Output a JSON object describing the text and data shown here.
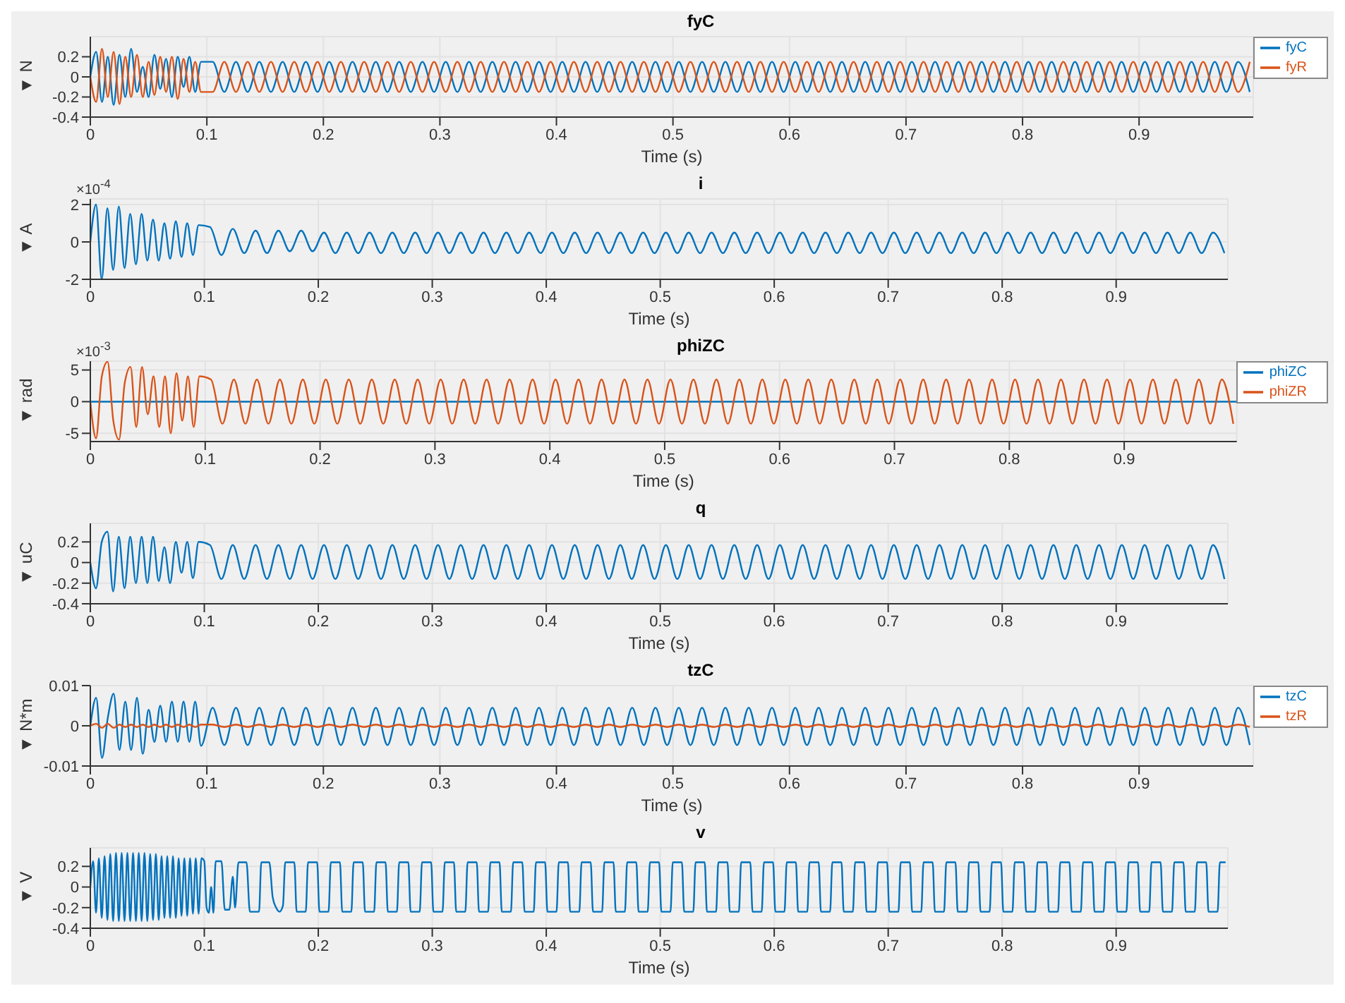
{
  "chart_data": [
    {
      "type": "line",
      "title": "fyC",
      "xlabel": "Time (s)",
      "ylabel": "▼ N",
      "xlim": [
        0,
        0.998
      ],
      "xticks": [
        0,
        0.1,
        0.2,
        0.3,
        0.4,
        0.5,
        0.6,
        0.7,
        0.8,
        0.9
      ],
      "ylim": [
        -0.4,
        0.4
      ],
      "yticks": [
        -0.4,
        -0.2,
        0,
        0.2
      ],
      "grid": true,
      "legend": "top right",
      "x": [
        0,
        0.005,
        0.01,
        0.015,
        0.02,
        0.025,
        0.03,
        0.035,
        0.04,
        0.045,
        0.05,
        0.055,
        0.06,
        0.065,
        0.07,
        0.075,
        0.08,
        0.085,
        0.09,
        0.095,
        0.105,
        0.115,
        0.125,
        0.135,
        0.145,
        0.155,
        0.165,
        0.175,
        0.185,
        0.195,
        0.205,
        0.215,
        0.225,
        0.235,
        0.245,
        0.255,
        0.265,
        0.275,
        0.285,
        0.295,
        0.305,
        0.315,
        0.325,
        0.335,
        0.345,
        0.355,
        0.365,
        0.375,
        0.385,
        0.395,
        0.405,
        0.415,
        0.425,
        0.435,
        0.445,
        0.455,
        0.465,
        0.475,
        0.485,
        0.495,
        0.505,
        0.515,
        0.525,
        0.535,
        0.545,
        0.555,
        0.565,
        0.575,
        0.585,
        0.595,
        0.605,
        0.615,
        0.625,
        0.635,
        0.645,
        0.655,
        0.665,
        0.675,
        0.685,
        0.695,
        0.705,
        0.715,
        0.725,
        0.735,
        0.745,
        0.755,
        0.765,
        0.775,
        0.785,
        0.795,
        0.805,
        0.815,
        0.825,
        0.835,
        0.845,
        0.855,
        0.865,
        0.875,
        0.885,
        0.895,
        0.905,
        0.915,
        0.925,
        0.935,
        0.945,
        0.955,
        0.965,
        0.975,
        0.985,
        0.995
      ],
      "series": [
        {
          "name": "fyC",
          "color": "#0072bd",
          "values": [
            0,
            0.25,
            -0.25,
            0.2,
            -0.28,
            0.22,
            -0.2,
            0.28,
            -0.15,
            0.1,
            -0.2,
            0.22,
            -0.12,
            0.18,
            -0.2,
            0.2,
            -0.1,
            0.2,
            -0.15,
            0.15,
            0.15,
            -0.15,
            0.15,
            -0.15,
            0.15,
            -0.15,
            0.15,
            -0.15,
            0.15,
            -0.15,
            0.15,
            -0.15,
            0.15,
            -0.15,
            0.15,
            -0.15,
            0.15,
            -0.15,
            0.15,
            -0.15,
            0.15,
            -0.15,
            0.15,
            -0.15,
            0.15,
            -0.15,
            0.15,
            -0.15,
            0.15,
            -0.15,
            0.15,
            -0.15,
            0.15,
            -0.15,
            0.15,
            -0.15,
            0.15,
            -0.15,
            0.15,
            -0.15,
            0.15,
            -0.15,
            0.15,
            -0.15,
            0.15,
            -0.15,
            0.15,
            -0.15,
            0.15,
            -0.15,
            0.15,
            -0.15,
            0.15,
            -0.15,
            0.15,
            -0.15,
            0.15,
            -0.15,
            0.15,
            -0.15,
            0.15,
            -0.15,
            0.15,
            -0.15,
            0.15,
            -0.15,
            0.15,
            -0.15,
            0.15,
            -0.15,
            0.15,
            -0.15,
            0.15,
            -0.15,
            0.15,
            -0.15,
            0.15,
            -0.15,
            0.15,
            -0.15,
            0.15,
            -0.15,
            0.15,
            -0.15,
            0.15,
            -0.15,
            0.15,
            -0.15,
            0.15,
            -0.15
          ]
        },
        {
          "name": "fyR",
          "color": "#d95319",
          "values": [
            0,
            -0.25,
            0.28,
            -0.2,
            0.25,
            -0.27,
            0.2,
            -0.2,
            0.22,
            -0.2,
            0.15,
            -0.18,
            0.2,
            -0.15,
            0.2,
            -0.22,
            0.18,
            -0.15,
            0.15,
            -0.15,
            -0.15,
            0.15,
            -0.15,
            0.15,
            -0.15,
            0.15,
            -0.15,
            0.15,
            -0.15,
            0.15,
            -0.15,
            0.15,
            -0.15,
            0.15,
            -0.15,
            0.15,
            -0.15,
            0.15,
            -0.15,
            0.15,
            -0.15,
            0.15,
            -0.15,
            0.15,
            -0.15,
            0.15,
            -0.15,
            0.15,
            -0.15,
            0.15,
            -0.15,
            0.15,
            -0.15,
            0.15,
            -0.15,
            0.15,
            -0.15,
            0.15,
            -0.15,
            0.15,
            -0.15,
            0.15,
            -0.15,
            0.15,
            -0.15,
            0.15,
            -0.15,
            0.15,
            -0.15,
            0.15,
            -0.15,
            0.15,
            -0.15,
            0.15,
            -0.15,
            0.15,
            -0.15,
            0.15,
            -0.15,
            0.15,
            -0.15,
            0.15,
            -0.15,
            0.15,
            -0.15,
            0.15,
            -0.15,
            0.15,
            -0.15,
            0.15,
            -0.15,
            0.15,
            -0.15,
            0.15,
            -0.15,
            0.15,
            -0.15,
            0.15,
            -0.15,
            0.15,
            -0.15,
            0.15,
            -0.15,
            0.15,
            -0.15,
            0.15,
            -0.15,
            0.15,
            -0.15,
            0.15
          ]
        }
      ]
    },
    {
      "type": "line",
      "title": "i",
      "xlabel": "Time (s)",
      "ylabel": "▼ A",
      "annotations": [
        "×10$^{-4}$"
      ],
      "xlim": [
        0,
        0.998
      ],
      "xticks": [
        0,
        0.1,
        0.2,
        0.3,
        0.4,
        0.5,
        0.6,
        0.7,
        0.8,
        0.9
      ],
      "ylim": [
        -2,
        2.3
      ],
      "yticks": [
        -2,
        0,
        2
      ],
      "grid": true,
      "x": [
        0,
        0.005,
        0.01,
        0.015,
        0.02,
        0.025,
        0.03,
        0.035,
        0.04,
        0.045,
        0.05,
        0.055,
        0.06,
        0.065,
        0.07,
        0.075,
        0.08,
        0.085,
        0.09,
        0.095,
        0.105,
        0.115,
        0.125,
        0.135,
        0.145,
        0.155,
        0.165,
        0.175,
        0.185,
        0.195,
        0.205,
        0.215,
        0.225,
        0.235,
        0.245,
        0.255,
        0.265,
        0.275,
        0.285,
        0.295,
        0.305,
        0.315,
        0.325,
        0.335,
        0.345,
        0.355,
        0.365,
        0.375,
        0.385,
        0.395,
        0.405,
        0.415,
        0.425,
        0.435,
        0.445,
        0.455,
        0.465,
        0.475,
        0.485,
        0.495,
        0.505,
        0.515,
        0.525,
        0.535,
        0.545,
        0.555,
        0.565,
        0.575,
        0.585,
        0.595,
        0.605,
        0.615,
        0.625,
        0.635,
        0.645,
        0.655,
        0.665,
        0.675,
        0.685,
        0.695,
        0.705,
        0.715,
        0.725,
        0.735,
        0.745,
        0.755,
        0.765,
        0.775,
        0.785,
        0.795,
        0.805,
        0.815,
        0.825,
        0.835,
        0.845,
        0.855,
        0.865,
        0.875,
        0.885,
        0.895,
        0.905,
        0.915,
        0.925,
        0.935,
        0.945,
        0.955,
        0.965,
        0.975,
        0.985,
        0.995
      ],
      "series": [
        {
          "color": "#0072bd",
          "values": [
            0,
            2,
            -2,
            1.8,
            -1.5,
            1.9,
            -1.4,
            1.5,
            -1.2,
            1.5,
            -1,
            1.2,
            -1,
            1,
            -0.9,
            1.1,
            -0.8,
            1,
            -0.7,
            0.9,
            0.8,
            -0.7,
            0.7,
            -0.6,
            0.6,
            -0.6,
            0.6,
            -0.5,
            0.6,
            -0.5,
            0.5,
            -0.6,
            0.5,
            -0.6,
            0.5,
            -0.6,
            0.5,
            -0.6,
            0.5,
            -0.6,
            0.5,
            -0.6,
            0.5,
            -0.6,
            0.5,
            -0.6,
            0.5,
            -0.6,
            0.5,
            -0.6,
            0.5,
            -0.6,
            0.5,
            -0.6,
            0.5,
            -0.6,
            0.5,
            -0.6,
            0.5,
            -0.6,
            0.5,
            -0.6,
            0.5,
            -0.6,
            0.5,
            -0.6,
            0.5,
            -0.6,
            0.5,
            -0.6,
            0.5,
            -0.6,
            0.5,
            -0.6,
            0.5,
            -0.6,
            0.5,
            -0.6,
            0.5,
            -0.6,
            0.5,
            -0.6,
            0.5,
            -0.6,
            0.5,
            -0.6,
            0.5,
            -0.6,
            0.5,
            -0.6,
            0.5,
            -0.6,
            0.5,
            -0.6,
            0.5,
            -0.6,
            0.5,
            -0.6,
            0.5,
            -0.6,
            0.5,
            -0.6,
            0.5,
            -0.6,
            0.5,
            -0.6,
            0.5,
            -0.6,
            0.5,
            -0.6
          ]
        }
      ]
    },
    {
      "type": "line",
      "title": "phiZC",
      "xlabel": "Time (s)",
      "ylabel": "▼ rad",
      "annotations": [
        "×10$^{-3}$"
      ],
      "xlim": [
        0,
        0.998
      ],
      "xticks": [
        0,
        0.1,
        0.2,
        0.3,
        0.4,
        0.5,
        0.6,
        0.7,
        0.8,
        0.9
      ],
      "ylim": [
        -6.3,
        6.4
      ],
      "yticks": [
        -5,
        0,
        5
      ],
      "grid": true,
      "legend": "top right",
      "x": [
        0,
        0.005,
        0.01,
        0.015,
        0.02,
        0.025,
        0.03,
        0.035,
        0.04,
        0.045,
        0.05,
        0.055,
        0.06,
        0.065,
        0.07,
        0.075,
        0.08,
        0.085,
        0.09,
        0.095,
        0.105,
        0.115,
        0.125,
        0.135,
        0.145,
        0.155,
        0.165,
        0.175,
        0.185,
        0.195,
        0.205,
        0.215,
        0.225,
        0.235,
        0.245,
        0.255,
        0.265,
        0.275,
        0.285,
        0.295,
        0.305,
        0.315,
        0.325,
        0.335,
        0.345,
        0.355,
        0.365,
        0.375,
        0.385,
        0.395,
        0.405,
        0.415,
        0.425,
        0.435,
        0.445,
        0.455,
        0.465,
        0.475,
        0.485,
        0.495,
        0.505,
        0.515,
        0.525,
        0.535,
        0.545,
        0.555,
        0.565,
        0.575,
        0.585,
        0.595,
        0.605,
        0.615,
        0.625,
        0.635,
        0.645,
        0.655,
        0.665,
        0.675,
        0.685,
        0.695,
        0.705,
        0.715,
        0.725,
        0.735,
        0.745,
        0.755,
        0.765,
        0.775,
        0.785,
        0.795,
        0.805,
        0.815,
        0.825,
        0.835,
        0.845,
        0.855,
        0.865,
        0.875,
        0.885,
        0.895,
        0.905,
        0.915,
        0.925,
        0.935,
        0.945,
        0.955,
        0.965,
        0.975,
        0.985,
        0.995
      ],
      "series": [
        {
          "name": "phiZC",
          "color": "#0072bd",
          "x": [
            0,
            0.998
          ],
          "values": [
            0,
            0
          ]
        },
        {
          "name": "phiZR",
          "color": "#d95319",
          "values": [
            0,
            -5.8,
            4,
            6.3,
            -3,
            -6,
            3,
            5.5,
            -4,
            5.5,
            -2,
            4,
            -4,
            4,
            -5,
            4.5,
            -3,
            4,
            -4,
            4,
            3.5,
            -3.5,
            3.5,
            -3.5,
            3.5,
            -3.5,
            3.5,
            -3.5,
            3.5,
            -3.5,
            3.5,
            -3.5,
            3.5,
            -3.5,
            3.5,
            -3.5,
            3.5,
            -3.5,
            3.5,
            -3.5,
            3.5,
            -3.5,
            3.5,
            -3.5,
            3.5,
            -3.5,
            3.5,
            -3.5,
            3.5,
            -3.5,
            3.5,
            -3.5,
            3.5,
            -3.5,
            3.5,
            -3.5,
            3.5,
            -3.5,
            3.5,
            -3.5,
            3.5,
            -3.5,
            3.5,
            -3.5,
            3.5,
            -3.5,
            3.5,
            -3.5,
            3.5,
            -3.5,
            3.5,
            -3.5,
            3.5,
            -3.5,
            3.5,
            -3.5,
            3.5,
            -3.5,
            3.5,
            -3.5,
            3.5,
            -3.5,
            3.5,
            -3.5,
            3.5,
            -3.5,
            3.5,
            -3.5,
            3.5,
            -3.5,
            3.5,
            -3.5,
            3.5,
            -3.5,
            3.5,
            -3.5,
            3.5,
            -3.5,
            3.5,
            -3.5,
            3.5,
            -3.5,
            3.5,
            -3.5,
            3.5,
            -3.5,
            3.5,
            -3.5,
            3.5,
            -3.5
          ]
        }
      ]
    },
    {
      "type": "line",
      "title": "q",
      "xlabel": "Time (s)",
      "ylabel": "▼ uC",
      "xlim": [
        0,
        0.998
      ],
      "xticks": [
        0,
        0.1,
        0.2,
        0.3,
        0.4,
        0.5,
        0.6,
        0.7,
        0.8,
        0.9
      ],
      "ylim": [
        -0.4,
        0.38
      ],
      "yticks": [
        -0.4,
        -0.2,
        0,
        0.2
      ],
      "grid": true,
      "x": [
        0,
        0.005,
        0.01,
        0.015,
        0.02,
        0.025,
        0.03,
        0.035,
        0.04,
        0.045,
        0.05,
        0.055,
        0.06,
        0.065,
        0.07,
        0.075,
        0.08,
        0.085,
        0.09,
        0.095,
        0.105,
        0.115,
        0.125,
        0.135,
        0.145,
        0.155,
        0.165,
        0.175,
        0.185,
        0.195,
        0.205,
        0.215,
        0.225,
        0.235,
        0.245,
        0.255,
        0.265,
        0.275,
        0.285,
        0.295,
        0.305,
        0.315,
        0.325,
        0.335,
        0.345,
        0.355,
        0.365,
        0.375,
        0.385,
        0.395,
        0.405,
        0.415,
        0.425,
        0.435,
        0.445,
        0.455,
        0.465,
        0.475,
        0.485,
        0.495,
        0.505,
        0.515,
        0.525,
        0.535,
        0.545,
        0.555,
        0.565,
        0.575,
        0.585,
        0.595,
        0.605,
        0.615,
        0.625,
        0.635,
        0.645,
        0.655,
        0.665,
        0.675,
        0.685,
        0.695,
        0.705,
        0.715,
        0.725,
        0.735,
        0.745,
        0.755,
        0.765,
        0.775,
        0.785,
        0.795,
        0.805,
        0.815,
        0.825,
        0.835,
        0.845,
        0.855,
        0.865,
        0.875,
        0.885,
        0.895,
        0.905,
        0.915,
        0.925,
        0.935,
        0.945,
        0.955,
        0.965,
        0.975,
        0.985,
        0.995
      ],
      "series": [
        {
          "color": "#0072bd",
          "values": [
            0,
            -0.25,
            0.2,
            0.3,
            -0.28,
            0.25,
            -0.25,
            0.25,
            -0.2,
            0.25,
            -0.2,
            0.25,
            -0.18,
            0.15,
            -0.2,
            0.2,
            -0.1,
            0.2,
            -0.15,
            0.2,
            0.17,
            -0.16,
            0.17,
            -0.16,
            0.17,
            -0.16,
            0.17,
            -0.16,
            0.17,
            -0.16,
            0.17,
            -0.16,
            0.17,
            -0.16,
            0.17,
            -0.16,
            0.17,
            -0.16,
            0.17,
            -0.16,
            0.17,
            -0.16,
            0.17,
            -0.16,
            0.17,
            -0.16,
            0.17,
            -0.16,
            0.17,
            -0.16,
            0.17,
            -0.16,
            0.17,
            -0.16,
            0.17,
            -0.16,
            0.17,
            -0.16,
            0.17,
            -0.16,
            0.17,
            -0.16,
            0.17,
            -0.16,
            0.17,
            -0.16,
            0.17,
            -0.16,
            0.17,
            -0.16,
            0.17,
            -0.16,
            0.17,
            -0.16,
            0.17,
            -0.16,
            0.17,
            -0.16,
            0.17,
            -0.16,
            0.17,
            -0.16,
            0.17,
            -0.16,
            0.17,
            -0.16,
            0.17,
            -0.16,
            0.17,
            -0.16,
            0.17,
            -0.16,
            0.17,
            -0.16,
            0.17,
            -0.16,
            0.17,
            -0.16,
            0.17,
            -0.16,
            0.17,
            -0.16,
            0.17,
            -0.16,
            0.17,
            -0.16,
            0.17,
            -0.16,
            0.17,
            -0.16
          ]
        }
      ]
    },
    {
      "type": "line",
      "title": "tzC",
      "xlabel": "Time (s)",
      "ylabel": "▼ N*m",
      "xlim": [
        0,
        0.998
      ],
      "xticks": [
        0,
        0.1,
        0.2,
        0.3,
        0.4,
        0.5,
        0.6,
        0.7,
        0.8,
        0.9
      ],
      "ylim": [
        -0.01,
        0.01
      ],
      "yticks": [
        -0.01,
        0,
        0.01
      ],
      "grid": true,
      "legend": "top right",
      "x": [
        0,
        0.005,
        0.01,
        0.015,
        0.02,
        0.025,
        0.03,
        0.035,
        0.04,
        0.045,
        0.05,
        0.055,
        0.06,
        0.065,
        0.07,
        0.075,
        0.08,
        0.085,
        0.09,
        0.095,
        0.105,
        0.115,
        0.125,
        0.135,
        0.145,
        0.155,
        0.165,
        0.175,
        0.185,
        0.195,
        0.205,
        0.215,
        0.225,
        0.235,
        0.245,
        0.255,
        0.265,
        0.275,
        0.285,
        0.295,
        0.305,
        0.315,
        0.325,
        0.335,
        0.345,
        0.355,
        0.365,
        0.375,
        0.385,
        0.395,
        0.405,
        0.415,
        0.425,
        0.435,
        0.445,
        0.455,
        0.465,
        0.475,
        0.485,
        0.495,
        0.505,
        0.515,
        0.525,
        0.535,
        0.545,
        0.555,
        0.565,
        0.575,
        0.585,
        0.595,
        0.605,
        0.615,
        0.625,
        0.635,
        0.645,
        0.655,
        0.665,
        0.675,
        0.685,
        0.695,
        0.705,
        0.715,
        0.725,
        0.735,
        0.745,
        0.755,
        0.765,
        0.775,
        0.785,
        0.795,
        0.805,
        0.815,
        0.825,
        0.835,
        0.845,
        0.855,
        0.865,
        0.875,
        0.885,
        0.895,
        0.905,
        0.915,
        0.925,
        0.935,
        0.945,
        0.955,
        0.965,
        0.975,
        0.985,
        0.995
      ],
      "series": [
        {
          "name": "tzC",
          "color": "#0072bd",
          "values": [
            0,
            0.007,
            -0.008,
            0.002,
            0.008,
            -0.006,
            0.006,
            -0.006,
            0.007,
            -0.007,
            0.004,
            -0.004,
            0.005,
            -0.004,
            0.006,
            -0.004,
            0.006,
            -0.004,
            0.006,
            -0.005,
            0.0045,
            -0.0048,
            0.0045,
            -0.0048,
            0.0045,
            -0.0048,
            0.0045,
            -0.0048,
            0.0045,
            -0.0048,
            0.0045,
            -0.0048,
            0.0045,
            -0.0048,
            0.0045,
            -0.0048,
            0.0045,
            -0.0048,
            0.0045,
            -0.0048,
            0.0045,
            -0.0048,
            0.0045,
            -0.0048,
            0.0045,
            -0.0048,
            0.0045,
            -0.0048,
            0.0045,
            -0.0048,
            0.0045,
            -0.0048,
            0.0045,
            -0.0048,
            0.0045,
            -0.0048,
            0.0045,
            -0.0048,
            0.0045,
            -0.0048,
            0.0045,
            -0.0048,
            0.0045,
            -0.0048,
            0.0045,
            -0.0048,
            0.0045,
            -0.0048,
            0.0045,
            -0.0048,
            0.0045,
            -0.0048,
            0.0045,
            -0.0048,
            0.0045,
            -0.0048,
            0.0045,
            -0.0048,
            0.0045,
            -0.0048,
            0.0045,
            -0.0048,
            0.0045,
            -0.0048,
            0.0045,
            -0.0048,
            0.0045,
            -0.0048,
            0.0045,
            -0.0048,
            0.0045,
            -0.0048,
            0.0045,
            -0.0048,
            0.0045,
            -0.0048,
            0.0045,
            -0.0048,
            0.0045,
            -0.0048,
            0.0045,
            -0.0048,
            0.0045,
            -0.0048,
            0.0045,
            -0.0048,
            0.0045,
            -0.0048,
            0.0045,
            -0.0048
          ]
        },
        {
          "name": "tzR",
          "color": "#d95319",
          "values": [
            0,
            0.0005,
            -0.0005,
            0.0005,
            -0.0005,
            0.0003,
            -0.0003,
            0.0003,
            -0.0003,
            0.0003,
            -0.0003,
            0.0003,
            -0.0003,
            0.0003,
            -0.0003,
            0.0003,
            -0.0003,
            0.0003,
            -0.0003,
            0.0003,
            0.0003,
            -0.0003,
            0.0003,
            -0.0003,
            0.0003,
            -0.0003,
            0.0003,
            -0.0003,
            0.0003,
            -0.0003,
            0.0003,
            -0.0003,
            0.0003,
            -0.0003,
            0.0003,
            -0.0003,
            0.0003,
            -0.0003,
            0.0003,
            -0.0003,
            0.0003,
            -0.0003,
            0.0003,
            -0.0003,
            0.0003,
            -0.0003,
            0.0003,
            -0.0003,
            0.0003,
            -0.0003,
            0.0003,
            -0.0003,
            0.0003,
            -0.0003,
            0.0003,
            -0.0003,
            0.0003,
            -0.0003,
            0.0003,
            -0.0003,
            0.0003,
            -0.0003,
            0.0003,
            -0.0003,
            0.0003,
            -0.0003,
            0.0003,
            -0.0003,
            0.0003,
            -0.0003,
            0.0003,
            -0.0003,
            0.0003,
            -0.0003,
            0.0003,
            -0.0003,
            0.0003,
            -0.0003,
            0.0003,
            -0.0003,
            0.0003,
            -0.0003,
            0.0003,
            -0.0003,
            0.0003,
            -0.0003,
            0.0003,
            -0.0003,
            0.0003,
            -0.0003,
            0.0003,
            -0.0003,
            0.0003,
            -0.0003,
            0.0003,
            -0.0003,
            0.0003,
            -0.0003,
            0.0003,
            -0.0003,
            0.0003,
            -0.0003,
            0.0003,
            -0.0003,
            0.0003,
            -0.0003,
            0.0003,
            -0.0003,
            0.0003,
            -0.0003
          ]
        }
      ]
    },
    {
      "type": "line",
      "title": "v",
      "xlabel": "Time (s)",
      "ylabel": "▼ V",
      "xlim": [
        0,
        0.998
      ],
      "xticks": [
        0,
        0.1,
        0.2,
        0.3,
        0.4,
        0.5,
        0.6,
        0.7,
        0.8,
        0.9
      ],
      "ylim": [
        -0.4,
        0.38
      ],
      "yticks": [
        -0.4,
        -0.2,
        0,
        0.2
      ],
      "grid": true,
      "x": [
        0,
        0.0025,
        0.005,
        0.0075,
        0.01,
        0.0125,
        0.015,
        0.0175,
        0.02,
        0.0225,
        0.025,
        0.0275,
        0.03,
        0.0325,
        0.035,
        0.0375,
        0.04,
        0.0425,
        0.045,
        0.0475,
        0.05,
        0.0525,
        0.055,
        0.0575,
        0.06,
        0.0625,
        0.065,
        0.0675,
        0.07,
        0.0725,
        0.075,
        0.0775,
        0.08,
        0.0825,
        0.085,
        0.0875,
        0.09,
        0.0925,
        0.095,
        0.0975,
        0.1,
        0.102,
        0.104,
        0.106,
        0.108,
        0.11,
        0.115,
        0.118,
        0.122,
        0.125,
        0.127,
        0.13,
        0.137,
        0.14,
        0.148,
        0.15,
        0.157,
        0.16,
        0.163,
        0.166,
        0.169,
        0.171,
        0.179,
        0.181,
        0.189,
        0.191,
        0.199,
        0.201,
        0.209,
        0.211,
        0.219,
        0.221,
        0.229,
        0.231,
        0.239,
        0.241,
        0.249,
        0.251,
        0.259,
        0.261,
        0.269,
        0.271,
        0.279,
        0.281,
        0.289,
        0.291,
        0.299,
        0.301,
        0.309,
        0.311,
        0.319,
        0.321,
        0.329,
        0.331,
        0.339,
        0.341,
        0.349,
        0.351,
        0.359,
        0.361,
        0.369,
        0.371,
        0.379,
        0.381,
        0.389,
        0.391,
        0.399,
        0.401,
        0.409,
        0.411,
        0.419,
        0.421,
        0.429,
        0.431,
        0.439,
        0.441,
        0.449,
        0.451,
        0.459,
        0.461,
        0.469,
        0.471,
        0.479,
        0.481,
        0.489,
        0.491,
        0.499,
        0.501,
        0.509,
        0.511,
        0.519,
        0.521,
        0.529,
        0.531,
        0.539,
        0.541,
        0.549,
        0.551,
        0.559,
        0.561,
        0.569,
        0.571,
        0.579,
        0.581,
        0.589,
        0.591,
        0.599,
        0.601,
        0.609,
        0.611,
        0.619,
        0.621,
        0.629,
        0.631,
        0.639,
        0.641,
        0.649,
        0.651,
        0.659,
        0.661,
        0.669,
        0.671,
        0.679,
        0.681,
        0.689,
        0.691,
        0.699,
        0.701,
        0.709,
        0.711,
        0.719,
        0.721,
        0.729,
        0.731,
        0.739,
        0.741,
        0.749,
        0.751,
        0.759,
        0.761,
        0.769,
        0.771,
        0.779,
        0.781,
        0.789,
        0.791,
        0.799,
        0.801,
        0.809,
        0.811,
        0.819,
        0.821,
        0.829,
        0.831,
        0.839,
        0.841,
        0.849,
        0.851,
        0.859,
        0.861,
        0.869,
        0.871,
        0.879,
        0.881,
        0.889,
        0.891,
        0.899,
        0.901,
        0.909,
        0.911,
        0.919,
        0.921,
        0.929,
        0.931,
        0.939,
        0.941,
        0.949,
        0.951,
        0.959,
        0.961,
        0.969,
        0.971,
        0.979,
        0.981,
        0.989,
        0.991,
        0.996
      ],
      "series": [
        {
          "color": "#0072bd",
          "values": [
            0,
            0.25,
            -0.25,
            0.28,
            -0.3,
            0.3,
            -0.32,
            0.32,
            -0.33,
            0.33,
            -0.33,
            0.33,
            -0.33,
            0.33,
            -0.33,
            0.33,
            -0.33,
            0.33,
            -0.33,
            0.33,
            -0.33,
            0.32,
            -0.32,
            0.32,
            -0.32,
            0.3,
            -0.3,
            0.3,
            -0.3,
            0.3,
            -0.3,
            0.28,
            -0.28,
            0.28,
            -0.28,
            0.28,
            -0.26,
            0.28,
            -0.26,
            0.28,
            0.25,
            -0.2,
            -0.25,
            0,
            -0.25,
            0.25,
            0.25,
            -0.22,
            -0.22,
            0.1,
            -0.2,
            0.24,
            0.24,
            -0.24,
            -0.24,
            0.24,
            0.24,
            -0.1,
            -0.2,
            -0.24,
            -0.18,
            0.24,
            0.24,
            -0.24,
            -0.24,
            0.24,
            0.24,
            -0.24,
            -0.24,
            0.24,
            0.24,
            -0.24,
            -0.24,
            0.24,
            0.24,
            -0.24,
            -0.24,
            0.24,
            0.24,
            -0.24,
            -0.24,
            0.24,
            0.24,
            -0.24,
            -0.24,
            0.24,
            0.24,
            -0.24,
            -0.24,
            0.24,
            0.24,
            -0.24,
            -0.24,
            0.24,
            0.24,
            -0.24,
            -0.24,
            0.24,
            0.24,
            -0.24,
            -0.24,
            0.24,
            0.24,
            -0.24,
            -0.24,
            0.24,
            0.24,
            -0.24,
            -0.24,
            0.24,
            0.24,
            -0.24,
            -0.24,
            0.24,
            0.24,
            -0.24,
            -0.24,
            0.24,
            0.24,
            -0.24,
            -0.24,
            0.24,
            0.24,
            -0.24,
            -0.24,
            0.24,
            0.24,
            -0.24,
            -0.24,
            0.24,
            0.24,
            -0.24,
            -0.24,
            0.24,
            0.24,
            -0.24,
            -0.24,
            0.24,
            0.24,
            -0.24,
            -0.24,
            0.24,
            0.24,
            -0.24,
            -0.24,
            0.24,
            0.24,
            -0.24,
            -0.24,
            0.24,
            0.24,
            -0.24,
            -0.24,
            0.24,
            0.24,
            -0.24,
            -0.24,
            0.24,
            0.24,
            -0.24,
            -0.24,
            0.24,
            0.24,
            -0.24,
            -0.24,
            0.24,
            0.24,
            -0.24,
            -0.24,
            0.24,
            0.24,
            -0.24,
            -0.24,
            0.24,
            0.24,
            -0.24,
            -0.24,
            0.24,
            0.24,
            -0.24,
            -0.24,
            0.24,
            0.24,
            -0.24,
            -0.24,
            0.24,
            0.24,
            -0.24,
            -0.24,
            0.24,
            0.24,
            -0.24,
            -0.24,
            0.24,
            0.24,
            -0.24,
            -0.24,
            0.24,
            0.24,
            -0.24,
            -0.24,
            0.24,
            0.24,
            -0.24,
            -0.24,
            0.24,
            0.24,
            -0.24,
            -0.24,
            0.24,
            0.24,
            -0.24,
            -0.24,
            0.24,
            0.24,
            -0.24,
            -0.24,
            0.24,
            0.24,
            -0.24,
            -0.24,
            0.24,
            0.24,
            -0.24,
            -0.24,
            0.24,
            0.24
          ]
        }
      ]
    }
  ]
}
